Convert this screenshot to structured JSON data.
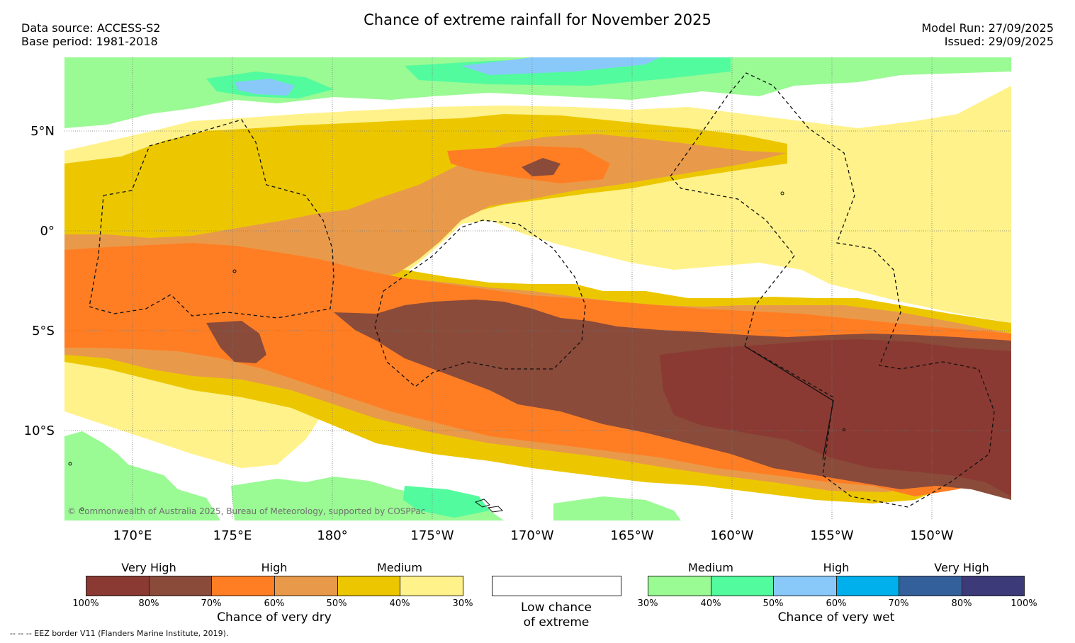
{
  "title": "Chance of extreme rainfall for November 2025",
  "meta": {
    "data_source": "Data source: ACCESS-S2",
    "base_period": "Base period: 1981-2018",
    "model_run": "Model Run: 27/09/2025",
    "issued": "Issued: 29/09/2025"
  },
  "map": {
    "lat_labels": [
      "5°N",
      "0°",
      "5°S",
      "10°S"
    ],
    "lon_labels": [
      "170°E",
      "175°E",
      "180°",
      "175°W",
      "170°W",
      "165°W",
      "160°W",
      "155°W",
      "150°W"
    ],
    "copyright": "© Commonwealth of Australia 2025, Bureau of Meteorology, supported by COSPPac"
  },
  "colors": {
    "dry_100_80": "#8a3a32",
    "dry_80_70": "#8a4b3a",
    "dry_70_60": "#ff7e24",
    "dry_60_50": "#e89a4a",
    "dry_50_40": "#ecc700",
    "dry_40_30": "#fff28a",
    "wet_30_40": "#9afa94",
    "wet_40_50": "#52fb9e",
    "wet_50_60": "#89c9fa",
    "wet_60_70": "#00b0ec",
    "wet_70_80": "#33609a",
    "wet_80_100": "#3c3a78",
    "neutral": "#ffffff"
  },
  "legend": {
    "dry": {
      "levels": [
        "Very High",
        "High",
        "Medium"
      ],
      "ticks": [
        "100%",
        "80%",
        "70%",
        "60%",
        "50%",
        "40%",
        "30%"
      ],
      "caption": "Chance of very dry"
    },
    "neutral": {
      "caption_line1": "Low chance",
      "caption_line2": "of extreme"
    },
    "wet": {
      "levels": [
        "Medium",
        "High",
        "Very High"
      ],
      "ticks": [
        "30%",
        "40%",
        "50%",
        "60%",
        "70%",
        "80%",
        "100%"
      ],
      "caption": "Chance of very wet"
    }
  },
  "footnote": "--  --  -- EEZ border V11 (Flanders Marine Institute, 2019)."
}
